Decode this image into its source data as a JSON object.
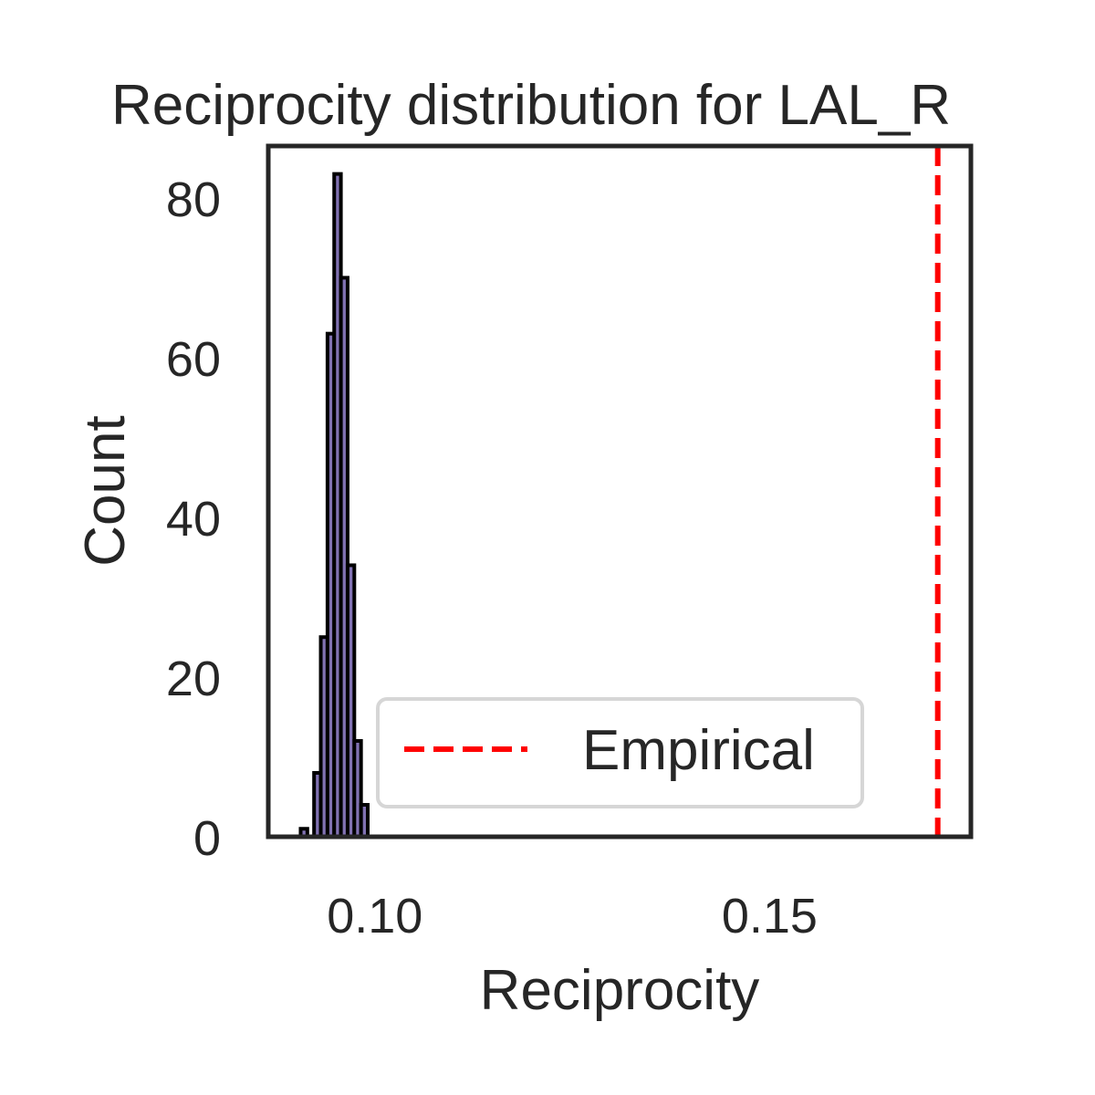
{
  "chart_data": {
    "type": "bar",
    "title": "Reciprocity distribution for LAL_R",
    "xlabel": "Reciprocity",
    "ylabel": "Count",
    "xlim": [
      0.0865,
      0.1755
    ],
    "ylim": [
      0,
      86.5
    ],
    "x_ticks": [
      0.1,
      0.15
    ],
    "x_tick_labels": [
      "0.10",
      "0.15"
    ],
    "y_ticks": [
      0,
      20,
      40,
      60,
      80
    ],
    "y_tick_labels": [
      "0",
      "20",
      "40",
      "60",
      "80"
    ],
    "bin_width": 0.00085,
    "bins": [
      {
        "x0": 0.0906,
        "count": 1
      },
      {
        "x0": 0.09145,
        "count": 0
      },
      {
        "x0": 0.0923,
        "count": 8
      },
      {
        "x0": 0.09315,
        "count": 25
      },
      {
        "x0": 0.094,
        "count": 63
      },
      {
        "x0": 0.09485,
        "count": 83
      },
      {
        "x0": 0.0957,
        "count": 70
      },
      {
        "x0": 0.09655,
        "count": 34
      },
      {
        "x0": 0.0974,
        "count": 12
      },
      {
        "x0": 0.09825,
        "count": 4
      }
    ],
    "bar_fill": "#8172b2",
    "bar_edge": "#000000",
    "reference_lines": [
      {
        "label": "Empirical",
        "x": 0.1713,
        "color": "#ff0000",
        "style": "dashed"
      }
    ],
    "legend": {
      "placement": "lower-right",
      "entries": [
        "Empirical"
      ]
    },
    "grid": false
  }
}
